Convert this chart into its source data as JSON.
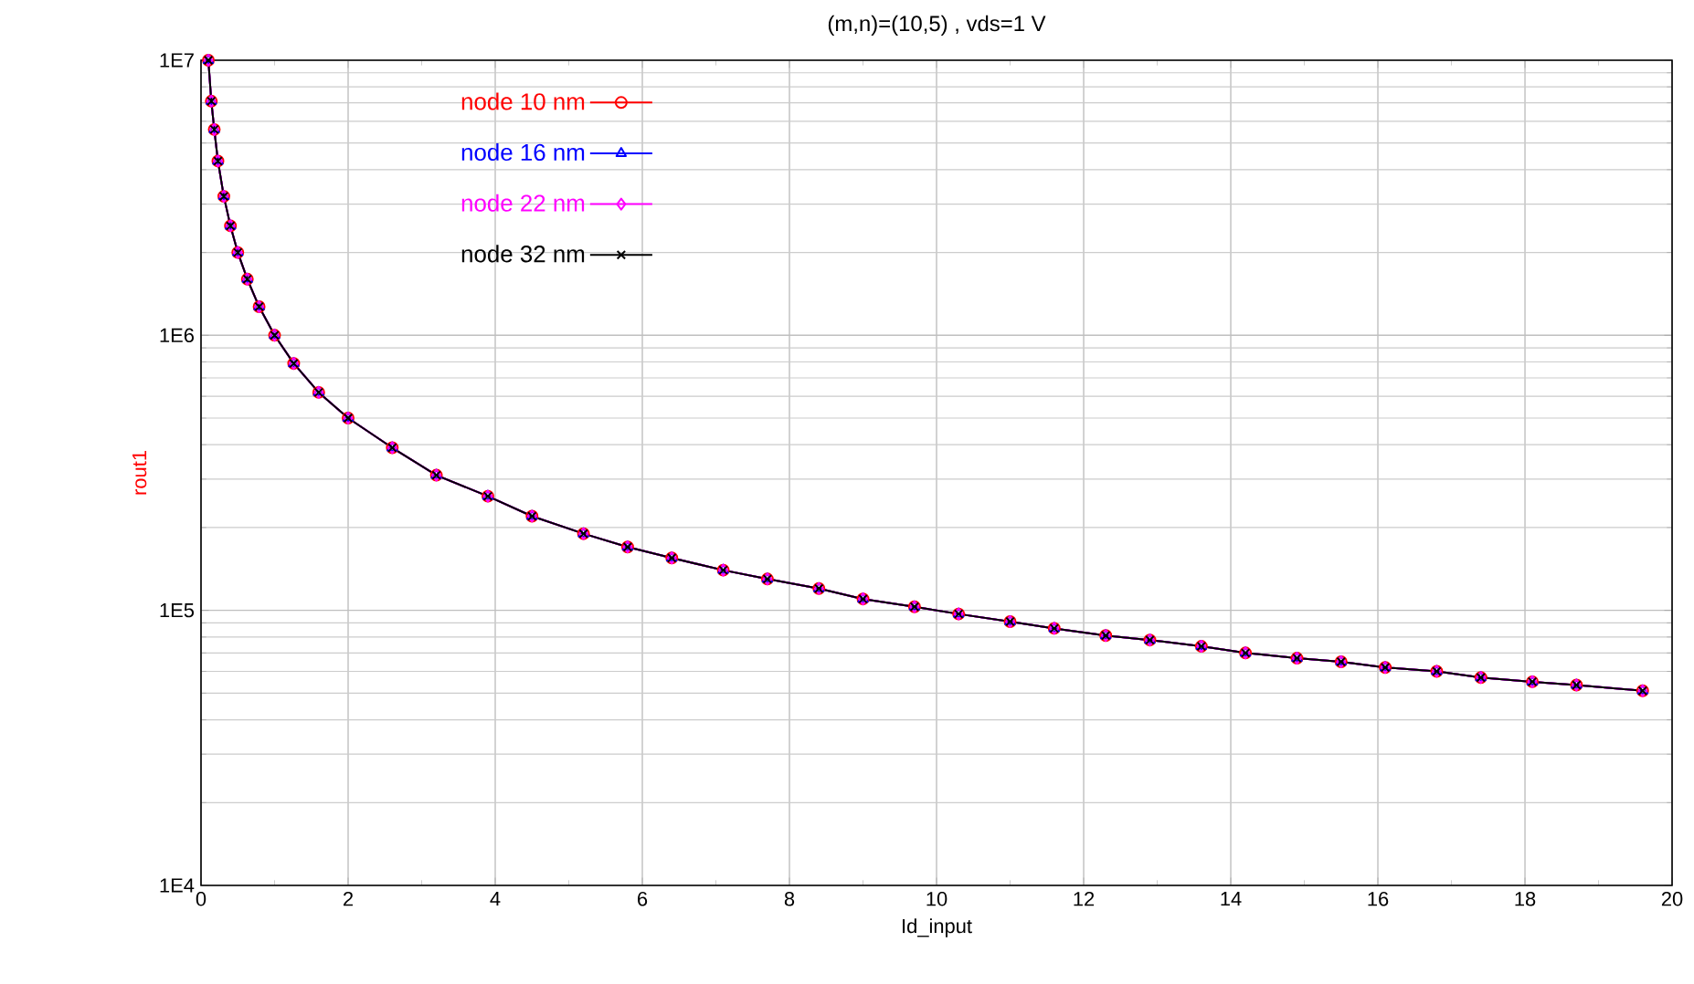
{
  "chart_data": {
    "type": "line",
    "title": "(m,n)=(10,5) , vds=1 V",
    "xlabel": "Id_input",
    "ylabel": "rout1",
    "x": [
      0.1,
      0.14,
      0.18,
      0.23,
      0.31,
      0.4,
      0.5,
      0.63,
      0.79,
      1.0,
      1.26,
      1.6,
      2.0,
      2.6,
      3.2,
      3.9,
      4.5,
      5.2,
      5.8,
      6.4,
      7.1,
      7.7,
      8.4,
      9.0,
      9.7,
      10.3,
      11.0,
      11.6,
      12.3,
      12.9,
      13.6,
      14.2,
      14.9,
      15.5,
      16.1,
      16.8,
      17.4,
      18.1,
      18.7,
      19.6
    ],
    "series": [
      {
        "name": "node 10 nm",
        "color": "#ff0000",
        "marker": "circle",
        "values": [
          10000000,
          7100000,
          5600000,
          4300000,
          3200000,
          2500000,
          2000000,
          1600000,
          1270000,
          1000000,
          790000,
          620000,
          500000,
          390000,
          310000,
          260000,
          220000,
          190000,
          170000,
          155000,
          140000,
          130000,
          120000,
          110000,
          103000,
          97000,
          91000,
          86000,
          81000,
          78000,
          74000,
          70000,
          67000,
          65000,
          62000,
          60000,
          57000,
          55000,
          53500,
          51000
        ]
      },
      {
        "name": "node 16 nm",
        "color": "#0000ff",
        "marker": "triangle",
        "values": [
          10000000,
          7100000,
          5600000,
          4300000,
          3200000,
          2500000,
          2000000,
          1600000,
          1270000,
          1000000,
          790000,
          620000,
          500000,
          390000,
          310000,
          260000,
          220000,
          190000,
          170000,
          155000,
          140000,
          130000,
          120000,
          110000,
          103000,
          97000,
          91000,
          86000,
          81000,
          78000,
          74000,
          70000,
          67000,
          65000,
          62000,
          60000,
          57000,
          55000,
          53500,
          51000
        ]
      },
      {
        "name": "node 22 nm",
        "color": "#ff00ff",
        "marker": "diamond",
        "values": [
          10000000,
          7100000,
          5600000,
          4300000,
          3200000,
          2500000,
          2000000,
          1600000,
          1270000,
          1000000,
          790000,
          620000,
          500000,
          390000,
          310000,
          260000,
          220000,
          190000,
          170000,
          155000,
          140000,
          130000,
          120000,
          110000,
          103000,
          97000,
          91000,
          86000,
          81000,
          78000,
          74000,
          70000,
          67000,
          65000,
          62000,
          60000,
          57000,
          55000,
          53500,
          51000
        ]
      },
      {
        "name": "node 32 nm",
        "color": "#000000",
        "marker": "cross",
        "values": [
          10000000,
          7100000,
          5600000,
          4300000,
          3200000,
          2500000,
          2000000,
          1600000,
          1270000,
          1000000,
          790000,
          620000,
          500000,
          390000,
          310000,
          260000,
          220000,
          190000,
          170000,
          155000,
          140000,
          130000,
          120000,
          110000,
          103000,
          97000,
          91000,
          86000,
          81000,
          78000,
          74000,
          70000,
          67000,
          65000,
          62000,
          60000,
          57000,
          55000,
          53500,
          51000
        ]
      }
    ],
    "log": "y",
    "xlim": [
      0,
      20
    ],
    "ylim": [
      10000,
      10000000
    ],
    "xticks": [
      0,
      2,
      4,
      6,
      8,
      10,
      12,
      14,
      16,
      18,
      20
    ],
    "yticks": [
      {
        "value": 10000,
        "label": "1E4"
      },
      {
        "value": 100000,
        "label": "1E5"
      },
      {
        "value": 1000000,
        "label": "1E6"
      },
      {
        "value": 10000000,
        "label": "1E7"
      }
    ],
    "grid": true,
    "legend": "top",
    "line_style": "solid"
  }
}
